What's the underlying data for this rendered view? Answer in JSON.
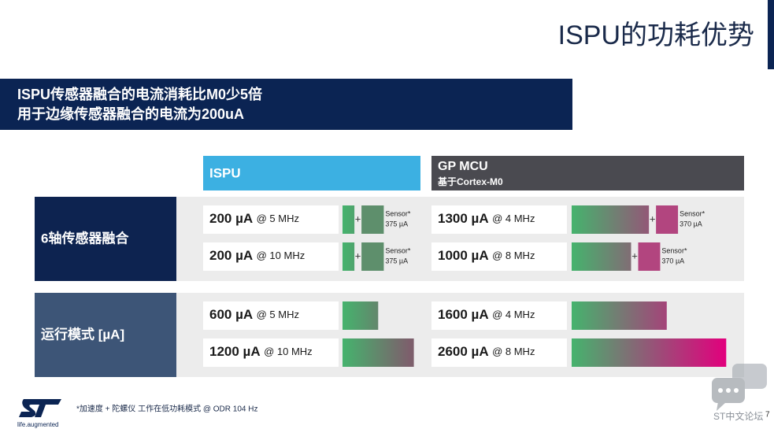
{
  "header": {
    "title": "ISPU的功耗优势"
  },
  "banner": {
    "lines": [
      "ISPU传感器融合的电流消耗比M0少5倍",
      "用于边缘传感器融合的电流为200uA"
    ]
  },
  "columns": {
    "ispu": {
      "title": "ISPU"
    },
    "mcu": {
      "title": "GP MCU",
      "subtitle": "基于Cortex-M0"
    }
  },
  "sections": [
    {
      "label": "6轴传感器融合",
      "rows": [
        {
          "ispu": {
            "value": 200,
            "label": "200 µA",
            "freq": "@ 5 MHz",
            "sensor": {
              "name": "Sensor*",
              "value": 375,
              "label": "375 µA"
            }
          },
          "mcu": {
            "value": 1300,
            "label": "1300 µA",
            "freq": "@ 4 MHz",
            "sensor": {
              "name": "Sensor*",
              "value": 370,
              "label": "370 µA"
            }
          }
        },
        {
          "ispu": {
            "value": 200,
            "label": "200 µA",
            "freq": "@ 10 MHz",
            "sensor": {
              "name": "Sensor*",
              "value": 375,
              "label": "375 µA"
            }
          },
          "mcu": {
            "value": 1000,
            "label": "1000 µA",
            "freq": "@ 8 MHz",
            "sensor": {
              "name": "Sensor*",
              "value": 370,
              "label": "370 µA"
            }
          }
        }
      ]
    },
    {
      "label": "运行模式 [µA]",
      "rows": [
        {
          "ispu": {
            "value": 600,
            "label": "600 µA",
            "freq": "@ 5 MHz"
          },
          "mcu": {
            "value": 1600,
            "label": "1600 µA",
            "freq": "@ 4 MHz"
          }
        },
        {
          "ispu": {
            "value": 1200,
            "label": "1200 µA",
            "freq": "@ 10 MHz"
          },
          "mcu": {
            "value": 2600,
            "label": "2600 µA",
            "freq": "@ 8 MHz"
          }
        }
      ]
    }
  ],
  "footer": {
    "note": "*加速度 + 陀螺仪 工作在低功耗模式 @ ODR 104 Hz",
    "tagline": "life.augmented",
    "page": "7",
    "watermark": "ST中文论坛"
  }
}
